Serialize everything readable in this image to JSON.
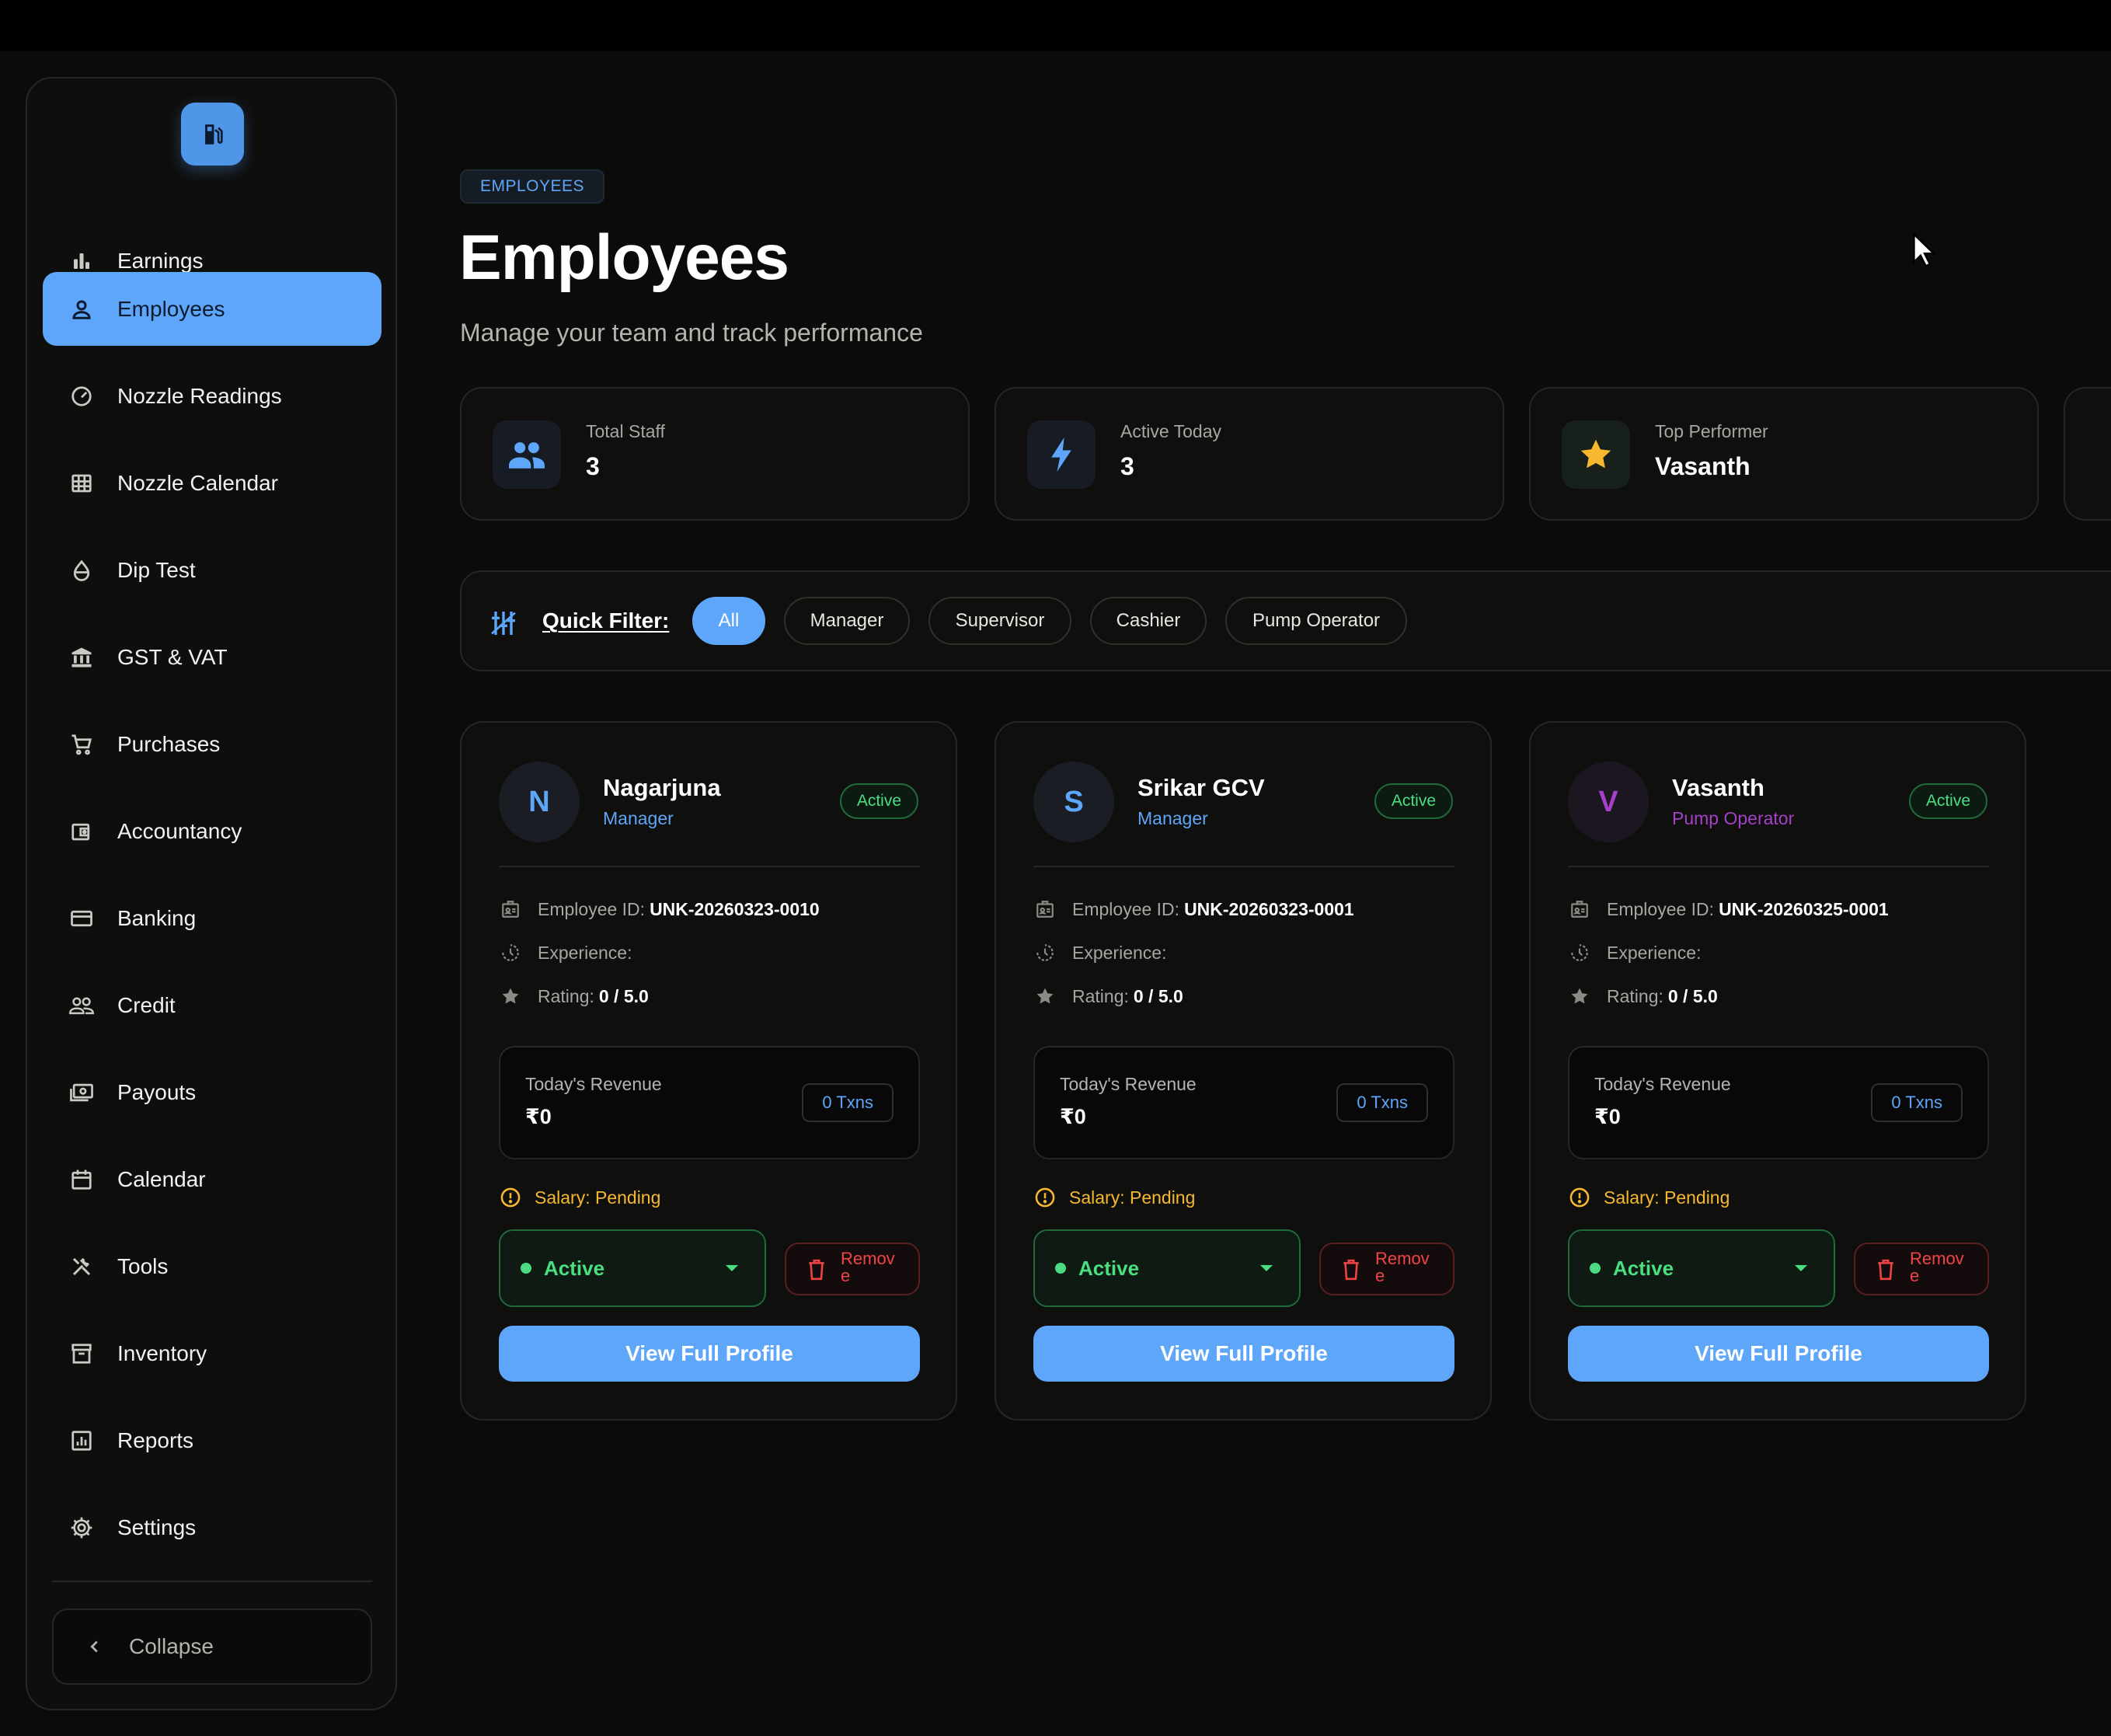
{
  "sidebar": {
    "logo_icon": "fuel-pump-icon",
    "items": [
      {
        "label": "Earnings",
        "icon": "bar-chart-icon",
        "active": false
      },
      {
        "label": "Employees",
        "icon": "person-icon",
        "active": true
      },
      {
        "label": "Nozzle Readings",
        "icon": "gauge-icon",
        "active": false
      },
      {
        "label": "Nozzle Calendar",
        "icon": "grid-icon",
        "active": false
      },
      {
        "label": "Dip Test",
        "icon": "drop-icon",
        "active": false
      },
      {
        "label": "GST & VAT",
        "icon": "bank-icon",
        "active": false
      },
      {
        "label": "Purchases",
        "icon": "cart-icon",
        "active": false
      },
      {
        "label": "Accountancy",
        "icon": "wallet-icon",
        "active": false
      },
      {
        "label": "Banking",
        "icon": "card-icon",
        "active": false
      },
      {
        "label": "Credit",
        "icon": "people-icon",
        "active": false
      },
      {
        "label": "Payouts",
        "icon": "payments-icon",
        "active": false
      },
      {
        "label": "Calendar",
        "icon": "calendar-icon",
        "active": false
      },
      {
        "label": "Tools",
        "icon": "tools-icon",
        "active": false
      },
      {
        "label": "Inventory",
        "icon": "archive-icon",
        "active": false
      },
      {
        "label": "Reports",
        "icon": "report-icon",
        "active": false
      },
      {
        "label": "Settings",
        "icon": "gear-icon",
        "active": false
      }
    ],
    "collapse_label": "Collapse"
  },
  "header": {
    "breadcrumb": "EMPLOYEES",
    "title": "Employees",
    "subtitle": "Manage your team and track performance"
  },
  "stats": [
    {
      "label": "Total Staff",
      "value": "3",
      "icon": "group-icon",
      "color": "#5ea6f9"
    },
    {
      "label": "Active Today",
      "value": "3",
      "icon": "bolt-icon",
      "color": "#5ea6f9"
    },
    {
      "label": "Top Performer",
      "value": "Vasanth",
      "icon": "star-icon",
      "color": "#f5b82e"
    }
  ],
  "filter": {
    "label": "Quick Filter:",
    "chips": [
      "All",
      "Manager",
      "Supervisor",
      "Cashier",
      "Pump Operator"
    ],
    "selected": "All"
  },
  "employees": [
    {
      "initial": "N",
      "name": "Nagarjuna",
      "role": "Manager",
      "role_color": "#5ea6f9",
      "status": "Active",
      "id_label": "Employee ID:",
      "id": "UNK-20260323-0010",
      "experience_label": "Experience:",
      "rating_label": "Rating:",
      "rating": "0 / 5.0",
      "revenue_label": "Today's Revenue",
      "revenue": "₹0",
      "txns": "0 Txns",
      "salary": "Salary: Pending",
      "select_value": "Active",
      "remove_label": "Remove",
      "profile_label": "View Full Profile"
    },
    {
      "initial": "S",
      "name": "Srikar GCV",
      "role": "Manager",
      "role_color": "#5ea6f9",
      "status": "Active",
      "id_label": "Employee ID:",
      "id": "UNK-20260323-0001",
      "experience_label": "Experience:",
      "rating_label": "Rating:",
      "rating": "0 / 5.0",
      "revenue_label": "Today's Revenue",
      "revenue": "₹0",
      "txns": "0 Txns",
      "salary": "Salary: Pending",
      "select_value": "Active",
      "remove_label": "Remove",
      "profile_label": "View Full Profile"
    },
    {
      "initial": "V",
      "name": "Vasanth",
      "role": "Pump Operator",
      "role_color": "#a63fc9",
      "status": "Active",
      "id_label": "Employee ID:",
      "id": "UNK-20260325-0001",
      "experience_label": "Experience:",
      "rating_label": "Rating:",
      "rating": "0 / 5.0",
      "revenue_label": "Today's Revenue",
      "revenue": "₹0",
      "txns": "0 Txns",
      "salary": "Salary: Pending",
      "select_value": "Active",
      "remove_label": "Remove",
      "profile_label": "View Full Profile"
    }
  ],
  "colors": {
    "accent": "#5ea6f9",
    "success": "#4ade80",
    "warning": "#f5b82e",
    "danger": "#ef4444",
    "background": "#0b0b0a"
  }
}
